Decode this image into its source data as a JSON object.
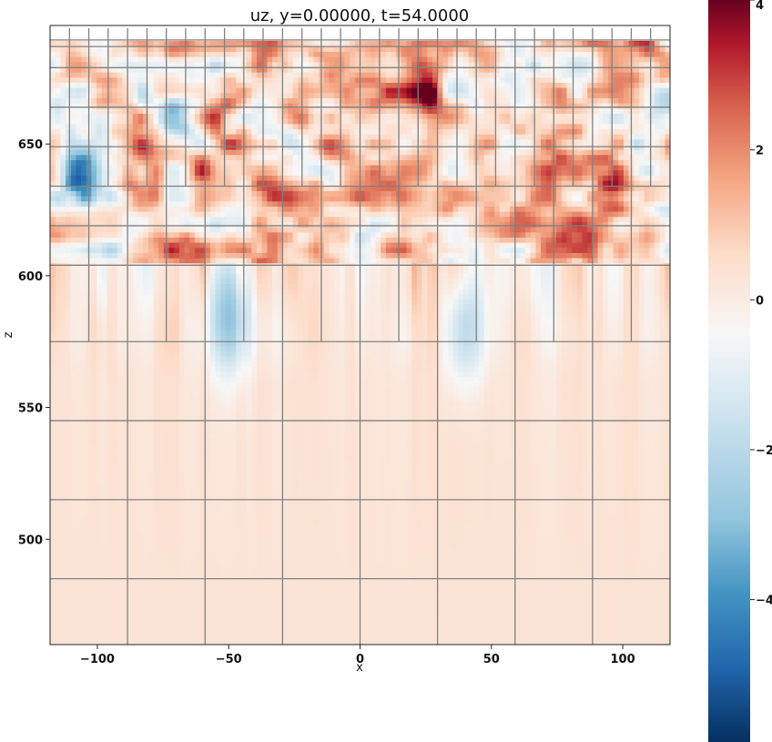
{
  "chart_data": {
    "type": "heatmap",
    "title": "uz,  y=0.00000,  t=54.0000",
    "xlabel": "x",
    "ylabel": "z",
    "xlim": [
      -118,
      118
    ],
    "ylim": [
      460,
      695
    ],
    "xticks": [
      -100,
      -50,
      0,
      50,
      100
    ],
    "xtick_labels": [
      "−100",
      "−50",
      "0",
      "50",
      "100"
    ],
    "yticks": [
      500,
      550,
      600,
      650
    ],
    "ytick_labels": [
      "500",
      "550",
      "600",
      "650"
    ],
    "colorbar": {
      "range": [
        -5.9,
        4.0
      ],
      "ticks": [
        4,
        2,
        0,
        -2,
        -4
      ],
      "tick_labels": [
        "4",
        "2",
        "0",
        "−2",
        "−4"
      ],
      "colormap": "RdBu_r",
      "colors": [
        "#053061",
        "#2166ac",
        "#4393c3",
        "#92c5de",
        "#d1e5f0",
        "#f7f7f7",
        "#fddbc7",
        "#f4a582",
        "#d6604d",
        "#b2182b",
        "#67001f"
      ]
    },
    "grid": "mesh element boundaries drawn",
    "mesh": {
      "horizontal_lines_z": [
        485,
        515,
        545,
        575,
        604,
        619,
        634,
        649,
        664,
        679,
        687
      ],
      "coarse_x": [
        -88.5,
        -59,
        -29.5,
        0,
        29.5,
        59,
        88.5
      ],
      "mid_x": [
        -103.25,
        -73.75,
        -44.25,
        -14.75,
        14.75,
        44.25,
        73.75,
        103.25
      ],
      "fine_x": [
        -110.6,
        -95.9,
        -81.1,
        -66.4,
        -51.6,
        -36.9,
        -22.1,
        -7.4,
        7.4,
        22.1,
        36.9,
        51.6,
        66.4,
        81.1,
        95.9,
        110.6
      ]
    },
    "features": [
      {
        "x": 25,
        "z": 668,
        "value": 4.0
      },
      {
        "x": -53,
        "z": 661,
        "value": 3.4
      },
      {
        "x": -105,
        "z": 640,
        "value": -4.5
      },
      {
        "x": -70,
        "z": 660,
        "value": -3.0
      },
      {
        "x": 116,
        "z": 664,
        "value": -3.2
      },
      {
        "x": -50,
        "z": 585,
        "value": -3.0
      },
      {
        "x": 0,
        "z": 630,
        "value": 2.8
      },
      {
        "x": 94,
        "z": 630,
        "value": 2.8
      },
      {
        "x": 40,
        "z": 580,
        "value": -2.2
      },
      {
        "x": -80,
        "z": 640,
        "value": 2.5
      }
    ],
    "background_value_lower": 0.3
  }
}
